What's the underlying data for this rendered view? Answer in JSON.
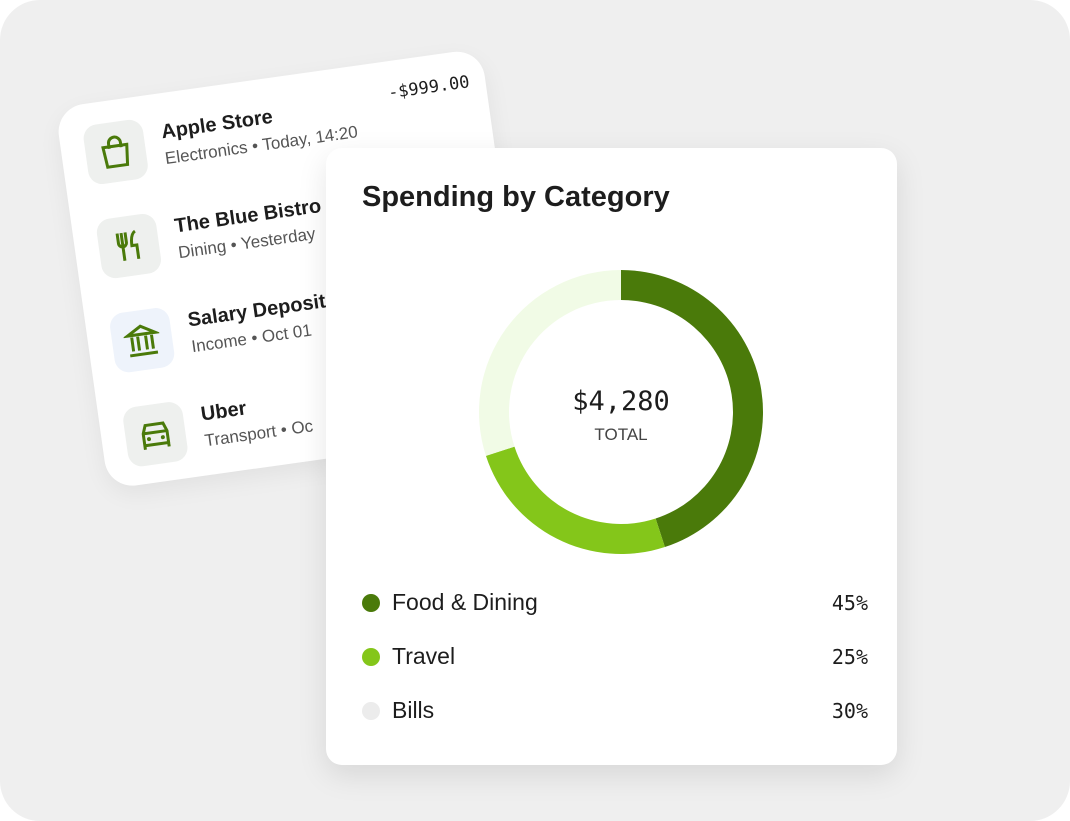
{
  "transactions": [
    {
      "title": "Apple Store",
      "subtitle": "Electronics • Today, 14:20",
      "amount": "-$999.00"
    },
    {
      "title": "The Blue Bistro",
      "subtitle": "Dining • Yesterday"
    },
    {
      "title": "Salary Deposit",
      "subtitle": "Income • Oct 01"
    },
    {
      "title": "Uber",
      "subtitle": "Transport • Oc"
    }
  ],
  "chart_data": {
    "type": "donut",
    "title": "Spending by Category",
    "center_value": "$4,280",
    "center_label": "TOTAL",
    "categories": [
      "Food & Dining",
      "Travel",
      "Bills"
    ],
    "values": [
      45,
      25,
      30
    ],
    "value_labels": [
      "45%",
      "25%",
      "30%"
    ],
    "colors": [
      "#4a7a0a",
      "#84c61a",
      "#f1fbe6"
    ],
    "legend_colors": [
      "#4a7a0a",
      "#84c61a",
      "#ececec"
    ]
  }
}
